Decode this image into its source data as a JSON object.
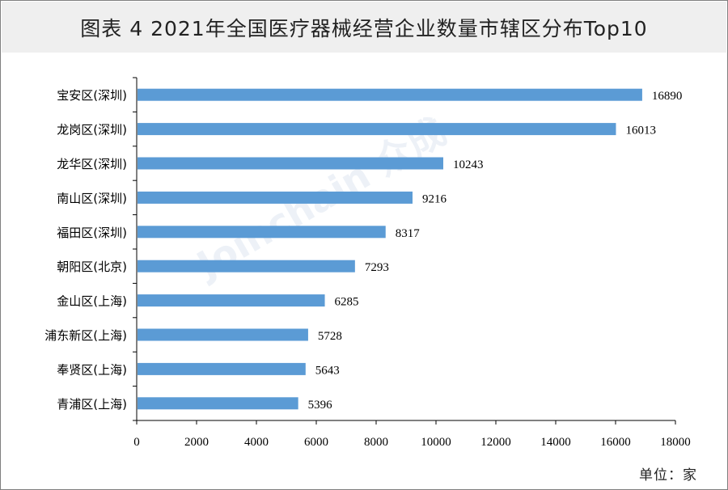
{
  "title": "图表 4  2021年全国医疗器械经营企业数量市辖区分布Top10",
  "unit_label": "单位：家",
  "watermark": "Joinchain 众成",
  "colors": {
    "bar": "#5b9bd5",
    "axis": "#000000",
    "title_bg": "#efefef"
  },
  "chart_data": {
    "type": "bar",
    "orientation": "horizontal",
    "categories": [
      "宝安区(深圳)",
      "龙岗区(深圳)",
      "龙华区(深圳)",
      "南山区(深圳)",
      "福田区(深圳)",
      "朝阳区(北京)",
      "金山区(上海)",
      "浦东新区(上海)",
      "奉贤区(上海)",
      "青浦区(上海)"
    ],
    "values": [
      16890,
      16013,
      10243,
      9216,
      8317,
      7293,
      6285,
      5728,
      5643,
      5396
    ],
    "xlim": [
      0,
      18000
    ],
    "xticks": [
      0,
      2000,
      4000,
      6000,
      8000,
      10000,
      12000,
      14000,
      16000,
      18000
    ],
    "grid": false,
    "data_labels": true
  }
}
